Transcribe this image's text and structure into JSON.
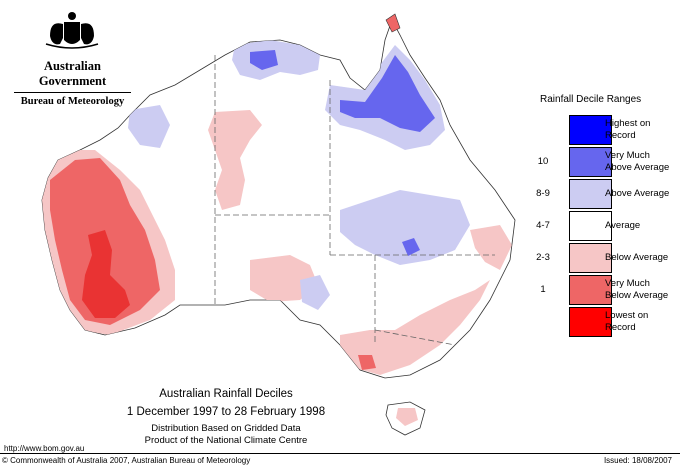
{
  "header": {
    "government": "Australian Government",
    "bureau": "Bureau of Meteorology"
  },
  "legend": {
    "title": "Rainfall Decile Ranges",
    "items": [
      {
        "range": "",
        "label_line1": "Highest on",
        "label_line2": "Record",
        "color": "#0000ff"
      },
      {
        "range": "10",
        "label_line1": "Very Much",
        "label_line2": "Above Average",
        "color": "#6666ee"
      },
      {
        "range": "8-9",
        "label_line1": "Above Average",
        "label_line2": "",
        "color": "#ccccf2"
      },
      {
        "range": "4-7",
        "label_line1": "Average",
        "label_line2": "",
        "color": "#ffffff"
      },
      {
        "range": "2-3",
        "label_line1": "Below Average",
        "label_line2": "",
        "color": "#f6c6c6"
      },
      {
        "range": "1",
        "label_line1": "Very Much",
        "label_line2": "Below Average",
        "color": "#ee6666"
      },
      {
        "range": "",
        "label_line1": "Lowest on",
        "label_line2": "Record",
        "color": "#ff0000"
      }
    ]
  },
  "map": {
    "title": "Australian Rainfall Deciles",
    "period": "1 December 1997 to 28 February 1998",
    "line3": "Distribution Based on Gridded Data",
    "line4": "Product of the National Climate Centre"
  },
  "footer": {
    "url": "http://www.bom.gov.au",
    "copyright": "© Commonwealth of Australia 2007, Australian Bureau of Meteorology",
    "issued": "Issued: 18/08/2007"
  }
}
